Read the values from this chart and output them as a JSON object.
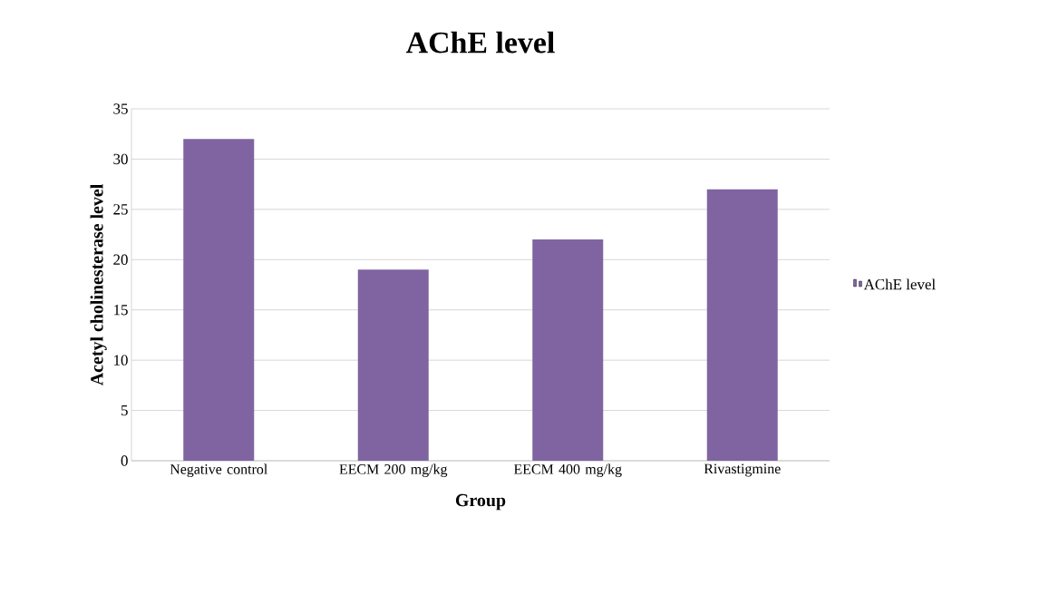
{
  "chart_data": {
    "type": "bar",
    "title": "AChE level",
    "xlabel": "Group",
    "ylabel": "Acetyl cholinesterase level",
    "categories": [
      "Negative control",
      "EECM 200 mg/kg",
      "EECM 400 mg/kg",
      "Rivastigmine"
    ],
    "series": [
      {
        "name": "AChE level",
        "color": "#8064a2",
        "values": [
          32,
          19,
          22,
          27
        ]
      }
    ],
    "ylim": [
      0,
      35
    ],
    "yticks": [
      0,
      5,
      10,
      15,
      20,
      25,
      30,
      35
    ],
    "grid": "y",
    "legend": "right"
  }
}
